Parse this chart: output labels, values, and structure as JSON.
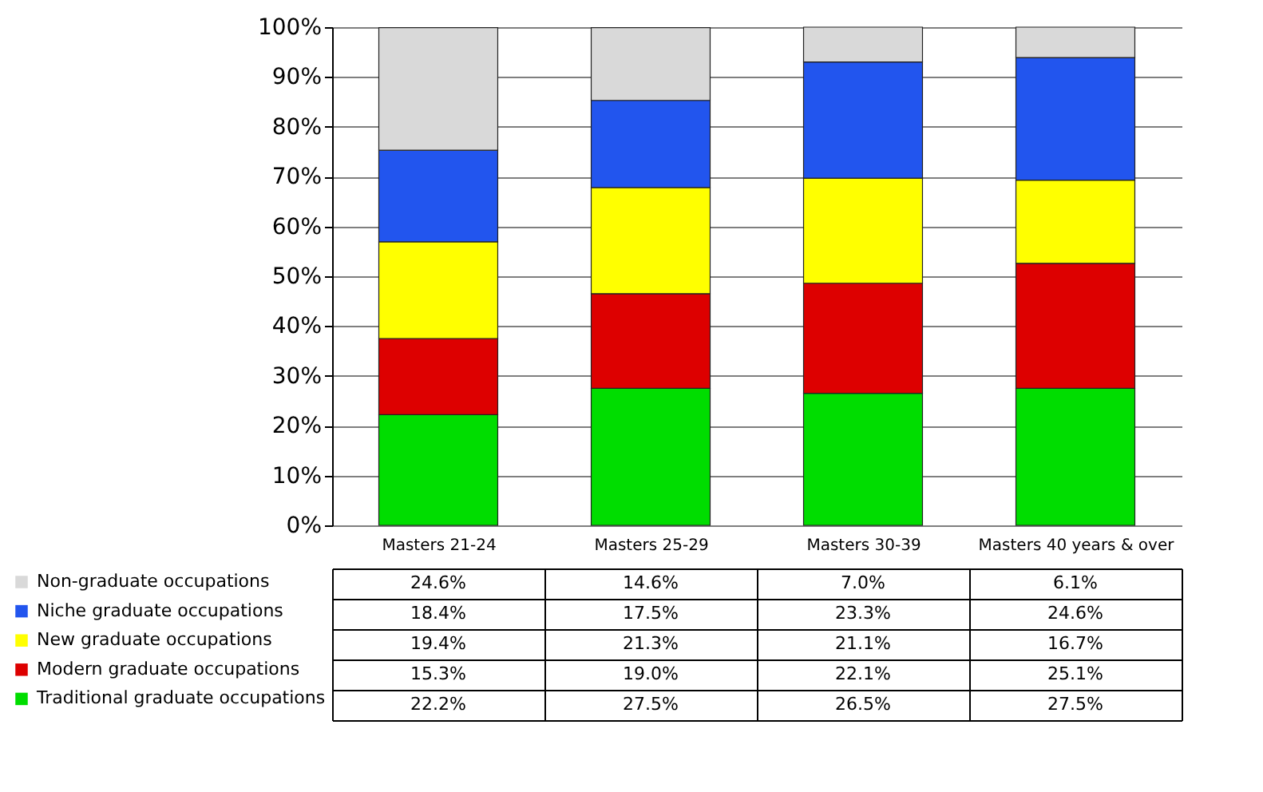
{
  "chart_data": {
    "type": "bar",
    "stacked": true,
    "categories": [
      "Masters 21-24",
      "Masters 25-29",
      "Masters 30-39",
      "Masters 40 years & over"
    ],
    "series": [
      {
        "name": "Traditional graduate occupations",
        "color": "#00dd00",
        "values": [
          22.2,
          27.5,
          26.5,
          27.5
        ],
        "value_labels": [
          "22.2%",
          "27.5%",
          "26.5%",
          "27.5%"
        ]
      },
      {
        "name": "Modern graduate occupations",
        "color": "#dd0000",
        "values": [
          15.3,
          19.0,
          22.1,
          25.1
        ],
        "value_labels": [
          "15.3%",
          "19.0%",
          "22.1%",
          "25.1%"
        ]
      },
      {
        "name": "New graduate occupations",
        "color": "#ffff00",
        "values": [
          19.4,
          21.3,
          21.1,
          16.7
        ],
        "value_labels": [
          "19.4%",
          "21.3%",
          "21.1%",
          "16.7%"
        ]
      },
      {
        "name": "Niche graduate occupations",
        "color": "#2255ee",
        "values": [
          18.4,
          17.5,
          23.3,
          24.6
        ],
        "value_labels": [
          "18.4%",
          "17.5%",
          "23.3%",
          "24.6%"
        ]
      },
      {
        "name": "Non-graduate occupations",
        "color": "#d9d9d9",
        "values": [
          24.6,
          14.6,
          7.0,
          6.1
        ],
        "value_labels": [
          "24.6%",
          "14.6%",
          "7.0%",
          "6.1%"
        ]
      }
    ],
    "ylim": [
      0,
      100
    ],
    "yticks": [
      {
        "value": 0,
        "label": "0%"
      },
      {
        "value": 10,
        "label": "10%"
      },
      {
        "value": 20,
        "label": "20%"
      },
      {
        "value": 30,
        "label": "30%"
      },
      {
        "value": 40,
        "label": "40%"
      },
      {
        "value": 50,
        "label": "50%"
      },
      {
        "value": 60,
        "label": "60%"
      },
      {
        "value": 70,
        "label": "70%"
      },
      {
        "value": 80,
        "label": "80%"
      },
      {
        "value": 90,
        "label": "90%"
      },
      {
        "value": 100,
        "label": "100%"
      }
    ],
    "grid": "y",
    "legend": "bottom left"
  }
}
